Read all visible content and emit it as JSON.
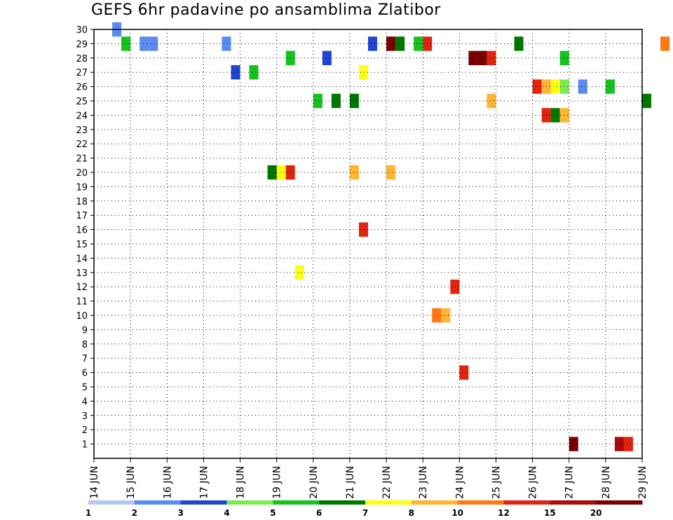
{
  "chart_data": {
    "type": "heatmap",
    "title": "GEFS 6hr padavine po ansamblima Zlatibor",
    "xlabel": "",
    "ylabel": "",
    "x_ticks": [
      "14 JUN",
      "15 JUN",
      "16 JUN",
      "17 JUN",
      "18 JUN",
      "19 JUN",
      "20 JUN",
      "21 JUN",
      "22 JUN",
      "23 JUN",
      "24 JUN",
      "25 JUN",
      "26 JUN",
      "27 JUN",
      "28 JUN",
      "29 JUN"
    ],
    "xlim": [
      "14 JUN",
      "29 JUN"
    ],
    "ylim": [
      0,
      30
    ],
    "y_ticks": [
      1,
      2,
      3,
      4,
      5,
      6,
      7,
      8,
      9,
      10,
      11,
      12,
      13,
      14,
      15,
      16,
      17,
      18,
      19,
      20,
      21,
      22,
      23,
      24,
      25,
      26,
      27,
      28,
      29,
      30
    ],
    "grid": true,
    "time_step_hours": 6,
    "colorbar": {
      "labels": [
        "1",
        "2",
        "3",
        "4",
        "5",
        "6",
        "7",
        "8",
        "10",
        "12",
        "15",
        "20"
      ],
      "colors": [
        "#b4c8f5",
        "#5a8cf0",
        "#1e46d2",
        "#78eb50",
        "#14c31e",
        "#007800",
        "#ffff14",
        "#ffb432",
        "#ff7814",
        "#e1230f",
        "#af0a0a",
        "#780000"
      ]
    },
    "cells": [
      {
        "member": 30,
        "time": "14 JUN 12",
        "level": 1
      },
      {
        "member": 29,
        "time": "14 JUN 18",
        "level": 4
      },
      {
        "member": 29,
        "time": "15 JUN 06",
        "level": 1
      },
      {
        "member": 29,
        "time": "15 JUN 12",
        "level": 1
      },
      {
        "member": 29,
        "time": "17 JUN 12",
        "level": 1
      },
      {
        "member": 29,
        "time": "21 JUN 12",
        "level": 2
      },
      {
        "member": 29,
        "time": "22 JUN 00",
        "level": 11
      },
      {
        "member": 29,
        "time": "22 JUN 06",
        "level": 5
      },
      {
        "member": 29,
        "time": "22 JUN 18",
        "level": 4
      },
      {
        "member": 29,
        "time": "23 JUN 00",
        "level": 9
      },
      {
        "member": 29,
        "time": "25 JUN 12",
        "level": 5
      },
      {
        "member": 29,
        "time": "29 JUN 12",
        "level": 8
      },
      {
        "member": 28,
        "time": "19 JUN 06",
        "level": 4
      },
      {
        "member": 28,
        "time": "20 JUN 06",
        "level": 2
      },
      {
        "member": 28,
        "time": "24 JUN 06",
        "level": 11
      },
      {
        "member": 28,
        "time": "24 JUN 12",
        "level": 11
      },
      {
        "member": 28,
        "time": "24 JUN 18",
        "level": 9
      },
      {
        "member": 28,
        "time": "26 JUN 18",
        "level": 4
      },
      {
        "member": 27,
        "time": "17 JUN 18",
        "level": 2
      },
      {
        "member": 27,
        "time": "18 JUN 06",
        "level": 4
      },
      {
        "member": 27,
        "time": "21 JUN 06",
        "level": 6
      },
      {
        "member": 26,
        "time": "26 JUN 00",
        "level": 9
      },
      {
        "member": 26,
        "time": "26 JUN 06",
        "level": 7
      },
      {
        "member": 26,
        "time": "26 JUN 12",
        "level": 6
      },
      {
        "member": 26,
        "time": "26 JUN 18",
        "level": 3
      },
      {
        "member": 26,
        "time": "27 JUN 06",
        "level": 1
      },
      {
        "member": 26,
        "time": "28 JUN 00",
        "level": 4
      },
      {
        "member": 25,
        "time": "20 JUN 00",
        "level": 4
      },
      {
        "member": 25,
        "time": "20 JUN 12",
        "level": 5
      },
      {
        "member": 25,
        "time": "21 JUN 00",
        "level": 5
      },
      {
        "member": 25,
        "time": "24 JUN 18",
        "level": 7
      },
      {
        "member": 25,
        "time": "29 JUN 00",
        "level": 5
      },
      {
        "member": 24,
        "time": "26 JUN 06",
        "level": 9
      },
      {
        "member": 24,
        "time": "26 JUN 12",
        "level": 5
      },
      {
        "member": 24,
        "time": "26 JUN 18",
        "level": 7
      },
      {
        "member": 20,
        "time": "18 JUN 18",
        "level": 5
      },
      {
        "member": 20,
        "time": "19 JUN 00",
        "level": 6
      },
      {
        "member": 20,
        "time": "19 JUN 06",
        "level": 9
      },
      {
        "member": 20,
        "time": "21 JUN 00",
        "level": 7
      },
      {
        "member": 20,
        "time": "22 JUN 00",
        "level": 7
      },
      {
        "member": 16,
        "time": "21 JUN 06",
        "level": 9
      },
      {
        "member": 13,
        "time": "19 JUN 12",
        "level": 6
      },
      {
        "member": 12,
        "time": "23 JUN 18",
        "level": 9
      },
      {
        "member": 10,
        "time": "23 JUN 06",
        "level": 8
      },
      {
        "member": 10,
        "time": "23 JUN 12",
        "level": 7
      },
      {
        "member": 6,
        "time": "24 JUN 00",
        "level": 9
      },
      {
        "member": 1,
        "time": "27 JUN 00",
        "level": 11
      },
      {
        "member": 1,
        "time": "28 JUN 06",
        "level": 10
      },
      {
        "member": 1,
        "time": "28 JUN 12",
        "level": 9
      }
    ]
  }
}
